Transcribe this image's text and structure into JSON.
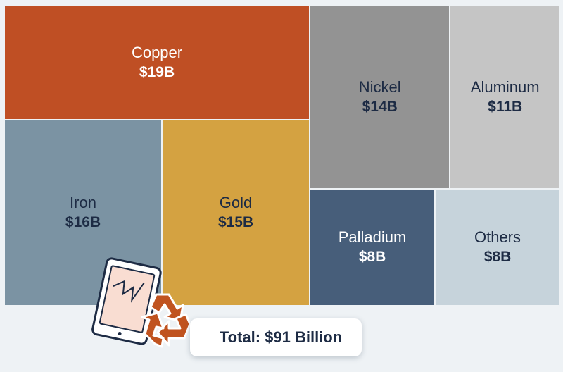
{
  "chart_data": {
    "type": "treemap",
    "unit": "$B",
    "cells": [
      {
        "name": "Copper",
        "value": 19,
        "label": "$19B",
        "color": "#bf4f24",
        "text_color": "#ffffff"
      },
      {
        "name": "Iron",
        "value": 16,
        "label": "$16B",
        "color": "#7b93a3",
        "text_color": "#1d2b44"
      },
      {
        "name": "Gold",
        "value": 15,
        "label": "$15B",
        "color": "#d4a241",
        "text_color": "#1d2b44"
      },
      {
        "name": "Nickel",
        "value": 14,
        "label": "$14B",
        "color": "#939393",
        "text_color": "#1d2b44"
      },
      {
        "name": "Aluminum",
        "value": 11,
        "label": "$11B",
        "color": "#c5c5c5",
        "text_color": "#1d2b44"
      },
      {
        "name": "Palladium",
        "value": 8,
        "label": "$8B",
        "color": "#475e7a",
        "text_color": "#ffffff"
      },
      {
        "name": "Others",
        "value": 8,
        "label": "$8B",
        "color": "#c6d3db",
        "text_color": "#1d2b44"
      }
    ],
    "total_label": "Total: $91 Billion"
  },
  "icons": {
    "illustration": "broken-tablet-icon",
    "recycle": "recycle-icon"
  },
  "colors": {
    "background": "#eef2f5",
    "recycle": "#c0531f",
    "tablet_screen": "#f9ddd2"
  }
}
